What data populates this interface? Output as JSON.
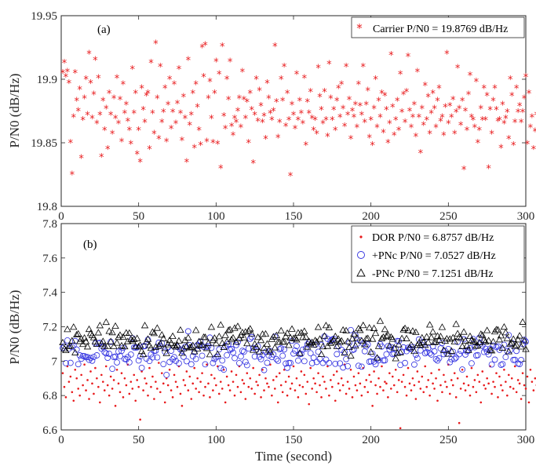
{
  "chart_data": [
    {
      "type": "scatter",
      "panel_label": "(a)",
      "xlabel": "",
      "ylabel": "P/N0 (dB/Hz)",
      "xlim": [
        0,
        300
      ],
      "ylim": [
        19.8,
        19.95
      ],
      "x_ticks": [
        "0",
        "50",
        "100",
        "150",
        "200",
        "250",
        "300"
      ],
      "y_ticks": [
        "19.8",
        "19.85",
        "19.9",
        "19.95"
      ],
      "legend_position": "top-right",
      "series": [
        {
          "name": "Carrier P/N0 = 19.8769 dB/Hz",
          "color": "#e8191b",
          "marker": "star",
          "values": [
            19.905,
            19.913,
            19.902,
            19.906,
            19.897,
            19.85,
            19.825,
            19.87,
            19.905,
            19.883,
            19.875,
            19.892,
            19.838,
            19.868,
            19.885,
            19.9,
            19.872,
            19.92,
            19.897,
            19.869,
            19.888,
            19.915,
            19.865,
            19.901,
            19.872,
            19.839,
            19.883,
            19.86,
            19.877,
            19.845,
            19.889,
            19.872,
            19.857,
            19.885,
            19.869,
            19.901,
            19.865,
            19.884,
            19.851,
            19.896,
            19.873,
            19.88,
            19.867,
            19.86,
            19.849,
            19.908,
            19.873,
            19.889,
            19.841,
            19.86,
            19.835,
            19.893,
            19.876,
            19.866,
            19.887,
            19.889,
            19.845,
            19.913,
            19.873,
            19.857,
            19.928,
            19.885,
            19.853,
            19.91,
            19.866,
            19.874,
            19.893,
            19.851,
            19.88,
            19.9,
            19.861,
            19.874,
            19.896,
            19.865,
            19.881,
            19.908,
            19.873,
            19.852,
            19.886,
            19.869,
            19.835,
            19.915,
            19.864,
            19.872,
            19.889,
            19.846,
            19.896,
            19.878,
            19.86,
            19.848,
            19.925,
            19.902,
            19.927,
            19.851,
            19.885,
            19.898,
            19.869,
            19.85,
            19.889,
            19.914,
            19.849,
            19.904,
            19.83,
            19.926,
            19.871,
            19.861,
            19.9,
            19.884,
            19.914,
            19.863,
            19.856,
            19.869,
            19.866,
            19.875,
            19.885,
            19.862,
            19.906,
            19.884,
            19.869,
            19.882,
            19.85,
            19.889,
            19.876,
            19.834,
            19.872,
            19.9,
            19.867,
            19.891,
            19.879,
            19.866,
            19.871,
            19.853,
            19.897,
            19.885,
            19.873,
            19.868,
            19.875,
            19.926,
            19.882,
            19.854,
            19.866,
            19.9,
            19.883,
            19.91,
            19.863,
            19.889,
            19.868,
            19.824,
            19.88,
            19.872,
            19.861,
            19.904,
            19.868,
            19.883,
            19.873,
            19.865,
            19.901,
            19.848,
            19.882,
            19.873,
            19.89,
            19.869,
            19.86,
            19.868,
            19.857,
            19.909,
            19.886,
            19.876,
            19.865,
            19.89,
            19.868,
            19.855,
            19.912,
            19.885,
            19.868,
            19.876,
            19.86,
            19.883,
            19.893,
            19.87,
            19.896,
            19.877,
            19.863,
            19.91,
            19.872,
            19.884,
            19.853,
            19.875,
            19.87,
            19.88,
            19.862,
            19.896,
            19.879,
            19.872,
            19.91,
            19.866,
            19.88,
            19.891,
            19.854,
            19.868,
            19.848,
            19.877,
            19.9,
            19.862,
            19.883,
            19.87,
            19.889,
            19.858,
            19.887,
            19.876,
            19.85,
            19.865,
            19.919,
            19.878,
            19.856,
            19.868,
            19.883,
            19.86,
            19.904,
            19.874,
            19.888,
            19.866,
            19.89,
            19.918,
            19.875,
            19.862,
            19.87,
            19.88,
            19.855,
            19.906,
            19.87,
            19.842,
            19.877,
            19.864,
            19.895,
            19.868,
            19.886,
            19.857,
            19.873,
            19.889,
            19.877,
            19.862,
            19.883,
            19.893,
            19.867,
            19.87,
            19.856,
            19.878,
            19.92,
            19.865,
            19.879,
            19.87,
            19.884,
            19.857,
            19.874,
            19.909,
            19.877,
            19.864,
            19.883,
            19.829,
            19.875,
            19.86,
            19.888,
            19.903,
            19.87,
            19.868,
            19.862,
            19.898,
            19.85,
            19.86,
            19.877,
            19.868,
            19.893,
            19.868,
            19.887,
            19.83,
            19.876,
            19.857,
            19.883,
            19.893,
            19.876,
            19.867,
            19.868,
            19.846,
            19.88,
            19.865,
            19.869,
            19.874,
            19.853,
            19.9,
            19.887,
            19.848,
            19.866,
            19.893,
            19.874,
            19.879,
            19.866,
            19.874,
            19.885,
            19.902,
            19.849,
            19.889,
            19.862,
            19.87,
            19.845,
            19.859,
            19.872,
            19.884,
            19.85,
            19.886,
            19.895,
            19.873,
            19.869,
            19.858,
            19.883,
            19.885,
            19.909,
            19.881,
            19.862,
            19.872,
            19.878,
            19.86,
            19.888,
            19.875,
            19.862,
            19.868
          ]
        }
      ]
    },
    {
      "type": "scatter",
      "panel_label": "(b)",
      "xlabel": "Time (second)",
      "ylabel": "P/N0 (dB/Hz)",
      "xlim": [
        0,
        300
      ],
      "ylim": [
        6.6,
        7.8
      ],
      "x_ticks": [
        "0",
        "50",
        "100",
        "150",
        "200",
        "250",
        "300"
      ],
      "y_ticks": [
        "6.6",
        "6.8",
        "7",
        "7.2",
        "7.4",
        "7.6",
        "7.8"
      ],
      "legend_position": "top-right",
      "series": [
        {
          "name": "DOR P/N0 = 6.8757 dB/Hz",
          "color": "#e8191b",
          "marker": "dot",
          "mean": 6.8757,
          "spread": 0.09,
          "values": [
            6.93,
            6.85,
            6.79,
            6.97,
            6.88,
            6.91,
            6.82,
            6.77,
            6.95,
            6.9,
            6.84,
            6.8,
            6.92,
            6.86,
            6.98,
            6.83,
            6.89,
            6.78,
            6.94,
            6.87,
            6.81,
            6.96,
            6.9,
            6.85,
            6.76,
            6.92,
            6.88,
            6.83,
            6.97,
            6.86,
            6.8,
            6.91,
            6.84,
            6.89,
            6.74,
            6.95,
            6.87,
            6.82,
            6.93,
            6.79,
            6.9,
            6.86,
            6.98,
            6.81,
            6.88,
            6.84,
            6.92,
            6.77,
            6.89,
            6.85,
            6.66,
            6.94,
            6.83,
            6.9,
            6.87,
            6.8,
            6.96,
            6.85,
            6.91,
            6.78,
            6.88,
            6.84,
            6.99,
            6.82,
            6.93,
            6.87,
            6.76,
            6.9,
            6.86,
            6.95,
            6.83,
            6.79,
            6.92,
            6.88,
            6.85,
            6.97,
            6.81,
            6.74,
            6.89,
            6.86,
            6.94,
            6.83,
            6.91,
            6.78,
            6.87,
            6.96,
            6.84,
            6.9,
            6.82,
            6.88,
            6.93,
            6.8,
            6.85,
            6.98,
            6.87,
            6.79,
            6.92,
            6.83,
            6.9,
            6.86,
            6.97,
            6.81,
            6.88,
            6.84,
            6.95,
            6.76,
            6.91,
            6.86,
            6.83,
            6.94,
            6.88,
            6.8,
            6.92,
            6.85,
            6.97,
            6.82,
            6.89,
            6.87,
            6.78,
            6.93,
            6.85,
            6.9,
            6.84,
            6.96,
            6.81,
            6.88,
            6.86,
            6.92,
            6.79,
            6.95,
            6.83,
            6.9,
            6.87,
            6.85,
            6.98,
            6.8,
            6.89,
            6.84,
            6.91,
            6.76,
            6.93,
            6.86,
            6.82,
            6.95,
            6.88,
            6.8,
            6.91,
            6.84,
            6.87,
            6.97,
            6.83,
            6.9,
            6.79,
            6.86,
            6.94,
            6.85,
            6.92,
            6.81,
            6.88,
            6.75,
            6.96,
            6.84,
            6.9,
            6.87,
            6.82,
            6.93,
            6.86,
            6.79,
            6.91,
            6.88,
            6.84,
            6.97,
            6.8,
            6.89,
            6.85,
            6.92,
            6.77,
            6.94,
            6.87,
            6.83,
            6.9,
            6.86,
            6.98,
            6.81,
            6.88,
            6.84,
            6.95,
            6.79,
            6.91,
            6.86,
            6.83,
            6.93,
            6.87,
            6.8,
            6.96,
            6.85,
            6.89,
            6.82,
            6.92,
            6.88,
            6.74,
            6.94,
            6.86,
            6.81,
            6.9,
            6.85,
            6.97,
            6.83,
            6.88,
            6.87,
            6.79,
            6.93,
            6.84,
            6.91,
            6.86,
            6.95,
            6.82,
            6.89,
            6.61,
            6.88,
            6.92,
            6.85,
            6.8,
            6.96,
            6.87,
            6.83,
            6.9,
            6.86,
            6.78,
            6.94,
            6.88,
            6.84,
            6.91,
            6.82,
            6.97,
            6.85,
            6.89,
            6.8,
            6.93,
            6.87,
            6.84,
            6.9,
            6.77,
            6.95,
            6.86,
            6.82,
            6.92,
            6.88,
            6.85,
            6.98,
            6.81,
            6.89,
            6.86,
            6.93,
            6.79,
            6.9,
            6.64,
            6.84,
            6.95,
            6.87,
            6.83,
            6.91,
            6.86,
            6.8,
            6.96,
            6.85,
            6.89,
            6.82,
            6.92,
            6.88,
            6.76,
            6.94,
            6.86,
            6.84,
            6.9,
            6.87,
            6.97,
            6.81,
            6.88,
            6.85,
            6.93,
            6.79,
            6.91,
            6.86,
            6.83,
            6.95,
            6.88,
            6.8,
            6.92,
            6.85,
            6.9,
            6.84,
            6.97,
            6.82,
            6.89,
            6.87,
            6.78,
            6.93,
            6.86,
            6.84,
            6.91,
            6.76,
            6.95,
            6.88,
            6.83,
            6.9,
            6.86,
            6.8,
            6.96,
            6.85,
            6.89,
            6.82,
            6.74,
            6.88,
            6.83,
            6.9
          ]
        },
        {
          "name": "+PNc P/N0 = 7.0527 dB/Hz",
          "color": "#3030e0",
          "marker": "circle",
          "mean": 7.0527,
          "spread": 0.07
        },
        {
          "name": "-PNc P/N0 = 7.1251 dB/Hz",
          "color": "#000000",
          "marker": "triangle",
          "mean": 7.1251,
          "spread": 0.06
        }
      ]
    }
  ]
}
